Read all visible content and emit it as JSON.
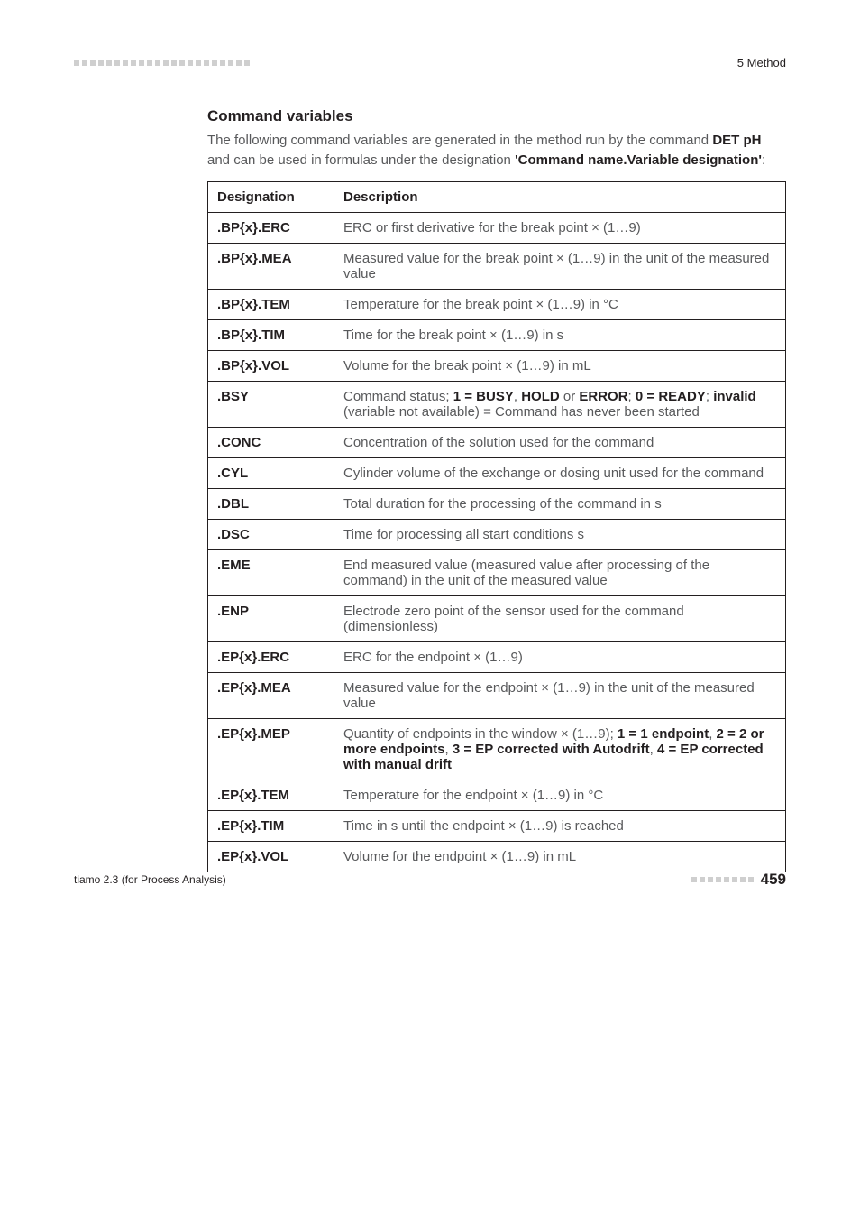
{
  "header": {
    "section": "5 Method"
  },
  "section": {
    "heading": "Command variables",
    "intro_1": "The following command variables are generated in the method run by the command ",
    "intro_cmd": "DET pH",
    "intro_2": " and can be used in formulas under the designation ",
    "intro_designation": "'Command name.Variable designation'",
    "intro_3": ":"
  },
  "table": {
    "head_designation": "Designation",
    "head_description": "Description",
    "rows": [
      {
        "d": ".BP{x}.ERC",
        "desc": "ERC or first derivative for the break point × (1…9)"
      },
      {
        "d": ".BP{x}.MEA",
        "desc": "Measured value for the break point × (1…9) in the unit of the measured value"
      },
      {
        "d": ".BP{x}.TEM",
        "desc": "Temperature for the break point × (1…9) in °C"
      },
      {
        "d": ".BP{x}.TIM",
        "desc": "Time for the break point × (1…9) in s"
      },
      {
        "d": ".BP{x}.VOL",
        "desc": "Volume for the break point × (1…9) in mL"
      },
      {
        "d": ".BSY",
        "desc_pre": "Command status; ",
        "b1": "1 = BUSY",
        "sep1": ", ",
        "b2": "HOLD",
        "sep2": " or ",
        "b3": "ERROR",
        "sep3": "; ",
        "b4": "0 = READY",
        "sep4": "; ",
        "b5": "invalid",
        "desc_post": " (variable not available) = Command has never been started"
      },
      {
        "d": ".CONC",
        "desc": "Concentration of the solution used for the command"
      },
      {
        "d": ".CYL",
        "desc": "Cylinder volume of the exchange or dosing unit used for the command"
      },
      {
        "d": ".DBL",
        "desc": "Total duration for the processing of the command in s"
      },
      {
        "d": ".DSC",
        "desc": "Time for processing all start conditions s"
      },
      {
        "d": ".EME",
        "desc": "End measured value (measured value after processing of the command) in the unit of the measured value"
      },
      {
        "d": ".ENP",
        "desc": "Electrode zero point of the sensor used for the command (dimensionless)"
      },
      {
        "d": ".EP{x}.ERC",
        "desc": "ERC for the endpoint × (1…9)"
      },
      {
        "d": ".EP{x}.MEA",
        "desc": "Measured value for the endpoint × (1…9) in the unit of the measured value"
      },
      {
        "d": ".EP{x}.MEP",
        "desc_pre": "Quantity of endpoints in the window × (1…9); ",
        "b1": "1 = 1 endpoint",
        "sep1": ", ",
        "b2": "2 = 2 or more endpoints",
        "sep2": ", ",
        "b3": "3 = EP corrected with Autodrift",
        "sep3": ", ",
        "b4": "4 = EP corrected with manual drift",
        "desc_post": ""
      },
      {
        "d": ".EP{x}.TEM",
        "desc": "Temperature for the endpoint × (1…9) in °C"
      },
      {
        "d": ".EP{x}.TIM",
        "desc": "Time in s until the endpoint × (1…9) is reached"
      },
      {
        "d": ".EP{x}.VOL",
        "desc": "Volume for the endpoint × (1…9) in mL"
      }
    ]
  },
  "footer": {
    "left": "tiamo 2.3 (for Process Analysis)",
    "page": "459"
  }
}
